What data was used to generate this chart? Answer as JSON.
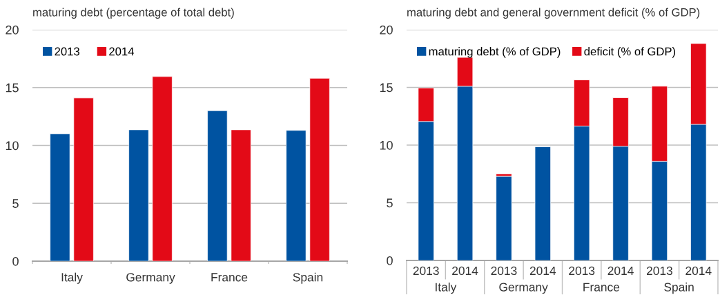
{
  "chart_data": [
    {
      "type": "bar",
      "title": "maturing debt (percentage of total debt)",
      "categories": [
        "Italy",
        "Germany",
        "France",
        "Spain"
      ],
      "series": [
        {
          "name": "2013",
          "color": "#0053a1",
          "values": [
            11.0,
            11.35,
            13.0,
            11.3
          ]
        },
        {
          "name": "2014",
          "color": "#e30a17",
          "values": [
            14.1,
            15.95,
            11.35,
            15.8
          ]
        }
      ],
      "ylim": [
        0,
        20
      ],
      "yticks": [
        0,
        5,
        10,
        15,
        20
      ],
      "grid": "y",
      "legend": "top left"
    },
    {
      "type": "bar",
      "stacked": true,
      "title": "maturing debt and general government deficit (% of GDP)",
      "categories": [
        "2013",
        "2014",
        "2013",
        "2014",
        "2013",
        "2014",
        "2013",
        "2014"
      ],
      "series": [
        {
          "name": "maturing debt (% of GDP)",
          "color": "#0053a1",
          "values": [
            12.05,
            15.1,
            7.3,
            9.85,
            11.65,
            9.9,
            8.6,
            11.8
          ]
        },
        {
          "name": "deficit (% of GDP)",
          "color": "#e30a17",
          "values": [
            2.9,
            2.5,
            0.2,
            null,
            4.0,
            4.2,
            6.5,
            7.0
          ]
        }
      ],
      "annotations": [
        "Italy",
        "Germany",
        "France",
        "Spain"
      ],
      "ylim": [
        0,
        20
      ],
      "yticks": [
        0,
        5,
        10,
        15,
        20
      ],
      "grid": "y",
      "legend": "top left"
    }
  ]
}
